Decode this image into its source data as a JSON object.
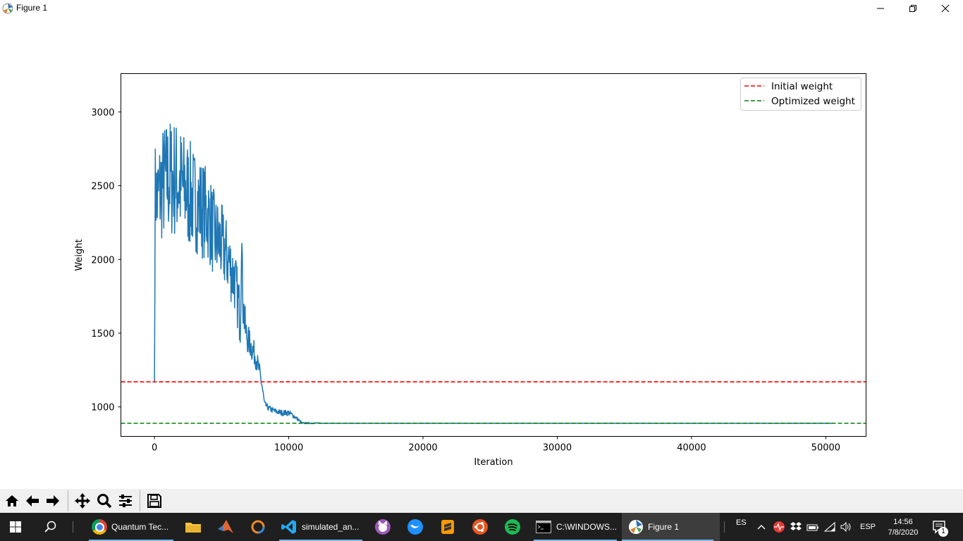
{
  "window": {
    "title": "Figure 1",
    "controls": [
      "minimize",
      "restore",
      "close"
    ]
  },
  "chart_data": {
    "type": "line",
    "xlabel": "Iteration",
    "ylabel": "Weight",
    "xlim": [
      -2500,
      53000
    ],
    "ylim": [
      800,
      3260
    ],
    "xticks": [
      0,
      10000,
      20000,
      30000,
      40000,
      50000
    ],
    "yticks": [
      1000,
      1500,
      2000,
      2500,
      3000
    ],
    "legend": {
      "placement": "top-right"
    },
    "series": [
      {
        "name": "",
        "color": "#1f77b4",
        "description_points": {
          "x": [
            0,
            50,
            200,
            500,
            1000,
            1500,
            2000,
            2500,
            3000,
            3500,
            4000,
            4500,
            5000,
            5500,
            6000,
            6400,
            6500,
            6600,
            6800,
            7000,
            7500,
            7800,
            8000,
            8200,
            8500,
            9000,
            9500,
            10000,
            10500,
            11000,
            11500,
            12000,
            13000,
            20000,
            30000,
            40000,
            50000,
            50800
          ],
          "y_center": [
            1170,
            2500,
            2400,
            2500,
            2550,
            2550,
            2500,
            2450,
            2400,
            2350,
            2300,
            2150,
            2100,
            2000,
            1850,
            1600,
            2150,
            1700,
            1500,
            1450,
            1350,
            1250,
            1150,
            1020,
            990,
            970,
            960,
            960,
            930,
            890,
            890,
            890,
            889,
            889,
            889,
            889,
            889,
            889
          ],
          "y_spread": [
            0,
            300,
            350,
            400,
            420,
            420,
            400,
            380,
            350,
            340,
            320,
            300,
            280,
            250,
            220,
            200,
            0,
            180,
            120,
            100,
            80,
            60,
            50,
            20,
            20,
            20,
            20,
            20,
            15,
            5,
            5,
            4,
            0,
            0,
            0,
            0,
            0,
            0
          ]
        }
      },
      {
        "name": "Initial weight",
        "color": "#ff0000",
        "style": "dashed",
        "y": 1170
      },
      {
        "name": "Optimized weight",
        "color": "#008000",
        "style": "dashed",
        "y": 889
      }
    ]
  },
  "toolbar": {
    "buttons": [
      "home-icon",
      "back-icon",
      "forward-icon",
      "pan-icon",
      "zoom-icon",
      "configure-subplots-icon",
      "save-icon"
    ]
  },
  "taskbar": {
    "apps": [
      {
        "label": "Quantum Tec...",
        "icon": "chrome-icon",
        "color": "#dd4b39"
      },
      {
        "label": "",
        "icon": "folder-icon",
        "color": "#f4c542"
      },
      {
        "label": "",
        "icon": "matlab-icon",
        "color": "#e16737"
      },
      {
        "label": "",
        "icon": "origin-icon",
        "color": "#f08a24"
      },
      {
        "label": "simulated_an...",
        "icon": "vscode-icon",
        "color": "#007acc"
      },
      {
        "label": "",
        "icon": "github-icon",
        "color": "#9b59b6"
      },
      {
        "label": "",
        "icon": "swift-icon",
        "color": "#1e90ff"
      },
      {
        "label": "",
        "icon": "sublime-icon",
        "color": "#ff9800"
      },
      {
        "label": "",
        "icon": "ubuntu-icon",
        "color": "#e95420"
      },
      {
        "label": "",
        "icon": "spotify-icon",
        "color": "#1db954"
      },
      {
        "label": "C:\\WINDOWS...",
        "icon": "cmd-icon",
        "color": "#000000"
      },
      {
        "label": "Figure 1",
        "icon": "figure-icon",
        "color": "#ffffff"
      }
    ],
    "lang": "ES",
    "keyboard": "ESP",
    "time": "14:56",
    "date": "7/8/2020",
    "notification_count": "1"
  }
}
